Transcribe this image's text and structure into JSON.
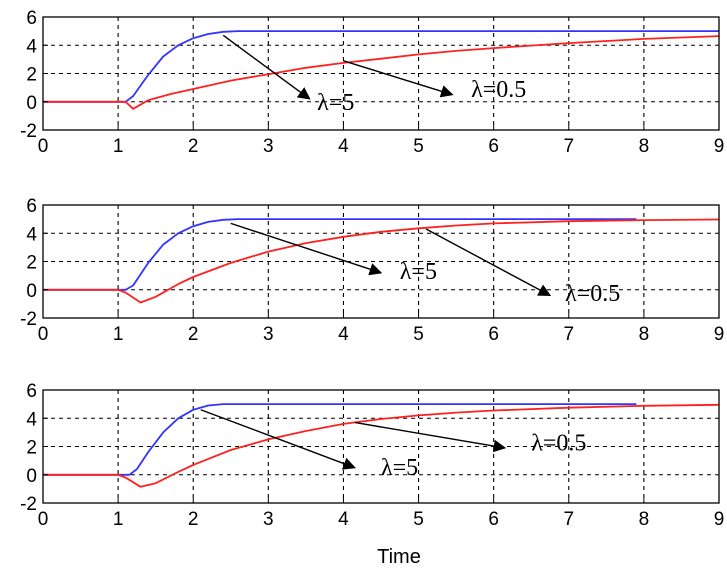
{
  "chart_data": [
    {
      "type": "line",
      "xlim": [
        0,
        9
      ],
      "ylim": [
        -2,
        6
      ],
      "xticks": [
        0,
        1,
        2,
        3,
        4,
        5,
        6,
        7,
        8,
        9
      ],
      "yticks": [
        -2,
        0,
        2,
        4,
        6
      ],
      "grid": true,
      "series": [
        {
          "color": "#3333ff",
          "x": [
            0,
            1,
            1.1,
            1.2,
            1.4,
            1.6,
            1.8,
            2.0,
            2.2,
            2.4,
            2.6,
            9
          ],
          "y": [
            0,
            0,
            0,
            0.4,
            1.9,
            3.2,
            4.0,
            4.5,
            4.8,
            4.95,
            5.0,
            5.0
          ]
        },
        {
          "color": "#ff2020",
          "x": [
            0,
            1,
            1.1,
            1.2,
            1.4,
            1.7,
            2.0,
            2.5,
            3.0,
            3.5,
            4.0,
            4.5,
            5.0,
            5.5,
            6.0,
            7.0,
            8.0,
            9.0
          ],
          "y": [
            0,
            0,
            0,
            -0.5,
            0.1,
            0.55,
            0.9,
            1.5,
            1.95,
            2.4,
            2.75,
            3.05,
            3.35,
            3.6,
            3.8,
            4.15,
            4.45,
            4.65
          ]
        }
      ],
      "annotations": [
        {
          "text": "λ=5",
          "from": [
            2.4,
            4.7
          ],
          "to": [
            3.55,
            0.2
          ],
          "text_at": [
            3.65,
            -0.6
          ]
        },
        {
          "text": "λ=0.5",
          "from": [
            4.0,
            2.9
          ],
          "to": [
            5.45,
            0.5
          ],
          "text_at": [
            5.7,
            0.35
          ]
        }
      ]
    },
    {
      "type": "line",
      "xlim": [
        0,
        9
      ],
      "ylim": [
        -2,
        6
      ],
      "xticks": [
        0,
        1,
        2,
        3,
        4,
        5,
        6,
        7,
        8,
        9
      ],
      "yticks": [
        -2,
        0,
        2,
        4,
        6
      ],
      "grid": true,
      "series": [
        {
          "color": "#3333ff",
          "x": [
            0,
            1,
            1.1,
            1.2,
            1.4,
            1.6,
            1.8,
            2.0,
            2.2,
            2.4,
            2.6,
            7.9
          ],
          "y": [
            0,
            0,
            0,
            0.3,
            1.9,
            3.2,
            4.0,
            4.5,
            4.8,
            4.95,
            5.0,
            5.0
          ]
        },
        {
          "color": "#ff2020",
          "x": [
            0,
            1,
            1.1,
            1.3,
            1.5,
            1.8,
            2.0,
            2.5,
            3.0,
            3.5,
            4.0,
            4.5,
            5.0,
            5.5,
            6.0,
            7.0,
            8.0,
            9.0
          ],
          "y": [
            0,
            0,
            -0.2,
            -0.9,
            -0.5,
            0.4,
            0.9,
            1.9,
            2.7,
            3.3,
            3.75,
            4.1,
            4.35,
            4.55,
            4.7,
            4.85,
            4.93,
            4.97
          ]
        }
      ],
      "annotations": [
        {
          "text": "λ=5",
          "from": [
            2.5,
            4.7
          ],
          "to": [
            4.5,
            1.2
          ],
          "text_at": [
            4.75,
            0.75
          ]
        },
        {
          "text": "λ=0.5",
          "from": [
            5.1,
            4.3
          ],
          "to": [
            6.75,
            -0.4
          ],
          "text_at": [
            6.95,
            -0.8
          ]
        }
      ]
    },
    {
      "type": "line",
      "xlim": [
        0,
        9
      ],
      "ylim": [
        -2,
        6
      ],
      "xticks": [
        0,
        1,
        2,
        3,
        4,
        5,
        6,
        7,
        8,
        9
      ],
      "yticks": [
        -2,
        0,
        2,
        4,
        6
      ],
      "grid": true,
      "xlabel": "Time",
      "series": [
        {
          "color": "#3333ff",
          "x": [
            0,
            1,
            1.15,
            1.25,
            1.4,
            1.6,
            1.8,
            2.0,
            2.2,
            2.4,
            7.9
          ],
          "y": [
            0,
            0,
            0,
            0.4,
            1.6,
            3.0,
            4.0,
            4.6,
            4.9,
            5.0,
            5.0
          ]
        },
        {
          "color": "#ff2020",
          "x": [
            0,
            1,
            1.1,
            1.3,
            1.5,
            1.8,
            2.0,
            2.5,
            3.0,
            3.5,
            4.0,
            4.5,
            5.0,
            5.5,
            6.0,
            7.0,
            8.0,
            9.0
          ],
          "y": [
            0,
            0,
            -0.2,
            -0.85,
            -0.6,
            0.2,
            0.7,
            1.75,
            2.5,
            3.1,
            3.6,
            3.95,
            4.2,
            4.4,
            4.55,
            4.75,
            4.88,
            4.95
          ]
        }
      ],
      "annotations": [
        {
          "text": "λ=5",
          "from": [
            2.1,
            4.6
          ],
          "to": [
            4.15,
            0.5
          ],
          "text_at": [
            4.5,
            0.0
          ]
        },
        {
          "text": "λ=0.5",
          "from": [
            4.15,
            3.7
          ],
          "to": [
            6.15,
            1.9
          ],
          "text_at": [
            6.5,
            1.7
          ]
        }
      ]
    }
  ]
}
